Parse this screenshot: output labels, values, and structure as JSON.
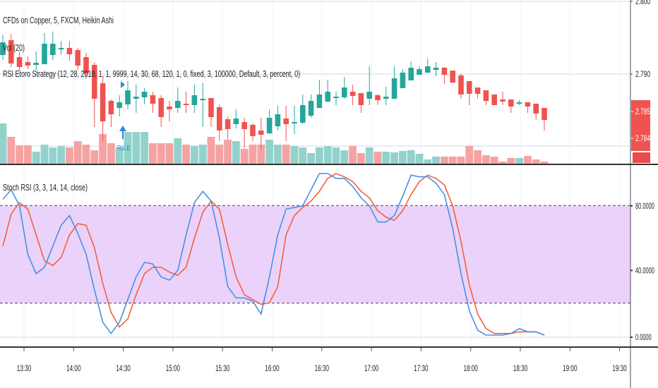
{
  "main_pane": {
    "title": "CFDs on Copper, 5, FXCM, Heikin Ashi",
    "volume_label": "Vol (20)",
    "strategy_label": "RSI Etoro Strategy (12, 28, 2018, 1, 1, 9999, 14, 30, 68, 120, 1, 0, fixed, 3, 100000, Default, 3, percent, 0)",
    "signal_label": "RsLE",
    "price_ticks": [
      "2.800",
      "2.790"
    ],
    "last_price_labels": [
      "2.785",
      "2.784"
    ]
  },
  "stoch_pane": {
    "label": "Stoch RSI (3, 3, 14, 14, close)",
    "ticks": [
      "80.0000",
      "40.0000",
      "0.0000"
    ],
    "overbought": 80,
    "oversold": 20
  },
  "time_axis": {
    "labels": [
      "13:30",
      "14:00",
      "14:30",
      "15:00",
      "15:30",
      "16:00",
      "16:30",
      "17:00",
      "17:30",
      "18:00",
      "18:30",
      "19:00",
      "19:30"
    ]
  },
  "colors": {
    "up": "#26a69a",
    "down": "#ef5350",
    "up_volume": "#93d2cc",
    "down_volume": "#f5a3a2",
    "stoch_k": "#4a90e2",
    "stoch_d": "#f4623a",
    "band": "#ead0fb",
    "signal": "#2e86de"
  },
  "chart_data": {
    "type": "candlestick",
    "price_range": [
      2.7775,
      2.8003
    ],
    "candles_ohlc": [
      [
        2.7927,
        2.7955,
        2.792,
        2.7945
      ],
      [
        2.7948,
        2.7957,
        2.791,
        2.7915
      ],
      [
        2.7924,
        2.7932,
        2.7905,
        2.791
      ],
      [
        2.7917,
        2.7925,
        2.7907,
        2.7912
      ],
      [
        2.7913,
        2.7932,
        2.7905,
        2.7916
      ],
      [
        2.7914,
        2.7958,
        2.7914,
        2.7943
      ],
      [
        2.7927,
        2.796,
        2.792,
        2.7943
      ],
      [
        2.7935,
        2.7947,
        2.7927,
        2.7937
      ],
      [
        2.7937,
        2.7947,
        2.7919,
        2.7928
      ],
      [
        2.7934,
        2.7937,
        2.7905,
        2.7912
      ],
      [
        2.7924,
        2.793,
        2.7893,
        2.7901
      ],
      [
        2.7913,
        2.7917,
        2.7825,
        2.7865
      ],
      [
        2.7887,
        2.7895,
        2.7805,
        2.7833
      ],
      [
        2.7862,
        2.7864,
        2.7825,
        2.7843
      ],
      [
        2.7852,
        2.787,
        2.784,
        2.786
      ],
      [
        2.7857,
        2.789,
        2.785,
        2.7877
      ],
      [
        2.7865,
        2.7885,
        2.7845,
        2.7868
      ],
      [
        2.7867,
        2.788,
        2.7857,
        2.7875
      ],
      [
        2.787,
        2.7875,
        2.7845,
        2.7858
      ],
      [
        2.7866,
        2.787,
        2.7825,
        2.7839
      ],
      [
        2.7854,
        2.7862,
        2.7833,
        2.785
      ],
      [
        2.7852,
        2.7881,
        2.7845,
        2.7862
      ],
      [
        2.7858,
        2.7875,
        2.7845,
        2.7856
      ],
      [
        2.7856,
        2.7885,
        2.7845,
        2.787
      ],
      [
        2.7863,
        2.7887,
        2.7825,
        2.7865
      ],
      [
        2.7866,
        2.7866,
        2.7825,
        2.7839
      ],
      [
        2.7853,
        2.7857,
        2.7805,
        2.782
      ],
      [
        2.7836,
        2.784,
        2.7808,
        2.7822
      ],
      [
        2.7829,
        2.785,
        2.7823,
        2.7837
      ],
      [
        2.7832,
        2.7838,
        2.7795,
        2.7822
      ],
      [
        2.7828,
        2.783,
        2.7805,
        2.7812
      ],
      [
        2.782,
        2.7838,
        2.7793,
        2.7814
      ],
      [
        2.7816,
        2.785,
        2.7815,
        2.7838
      ],
      [
        2.7826,
        2.7855,
        2.782,
        2.7843
      ],
      [
        2.7837,
        2.7855,
        2.7805,
        2.7829
      ],
      [
        2.783,
        2.7855,
        2.7815,
        2.7832
      ],
      [
        2.7831,
        2.7871,
        2.783,
        2.7856
      ],
      [
        2.7841,
        2.7871,
        2.7838,
        2.7862
      ],
      [
        2.7852,
        2.7892,
        2.7852,
        2.7871
      ],
      [
        2.7861,
        2.7892,
        2.786,
        2.7875
      ],
      [
        2.7866,
        2.7875,
        2.7856,
        2.7868
      ],
      [
        2.7867,
        2.7896,
        2.7865,
        2.7881
      ],
      [
        2.7875,
        2.7885,
        2.7856,
        2.7869
      ],
      [
        2.7873,
        2.7873,
        2.7845,
        2.7856
      ],
      [
        2.7865,
        2.7911,
        2.7856,
        2.7875
      ],
      [
        2.787,
        2.7872,
        2.7856,
        2.7863
      ],
      [
        2.7865,
        2.7882,
        2.7856,
        2.7868
      ],
      [
        2.7865,
        2.7911,
        2.7865,
        2.7894
      ],
      [
        2.788,
        2.7907,
        2.788,
        2.7902
      ],
      [
        2.7891,
        2.7918,
        2.7891,
        2.7909
      ],
      [
        2.7899,
        2.7911,
        2.7899,
        2.7907
      ],
      [
        2.7902,
        2.7922,
        2.7902,
        2.7911
      ],
      [
        2.7906,
        2.7917,
        2.7897,
        2.7909
      ],
      [
        2.7909,
        2.791,
        2.7886,
        2.7899
      ],
      [
        2.7905,
        2.7905,
        2.7887,
        2.7888
      ],
      [
        2.7898,
        2.7901,
        2.7865,
        2.7871
      ],
      [
        2.789,
        2.789,
        2.7856,
        2.7872
      ],
      [
        2.7881,
        2.7881,
        2.7865,
        2.7872
      ],
      [
        2.7877,
        2.7877,
        2.7856,
        2.7862
      ],
      [
        2.7871,
        2.7871,
        2.7856,
        2.7856
      ],
      [
        2.7864,
        2.7875,
        2.7856,
        2.7861
      ],
      [
        2.7864,
        2.7864,
        2.7845,
        2.7854
      ],
      [
        2.7858,
        2.7863,
        2.7856,
        2.786
      ],
      [
        2.786,
        2.786,
        2.7845,
        2.7854
      ],
      [
        2.7858,
        2.7858,
        2.7835,
        2.7844
      ],
      [
        2.7852,
        2.7852,
        2.782,
        2.7835
      ]
    ],
    "volume": [
      57,
      38,
      26,
      26,
      17,
      27,
      23,
      25,
      23,
      32,
      27,
      19,
      42,
      29,
      23,
      45,
      45,
      45,
      29,
      29,
      29,
      36,
      27,
      25,
      27,
      38,
      27,
      34,
      32,
      21,
      27,
      27,
      34,
      27,
      27,
      25,
      23,
      15,
      23,
      25,
      23,
      19,
      25,
      15,
      23,
      17,
      17,
      16,
      18,
      19,
      14,
      6,
      10,
      10,
      10,
      10,
      25,
      19,
      12,
      10,
      3,
      8,
      8,
      11,
      6,
      3
    ],
    "signal_candle_index": 14,
    "stoch_rsi": {
      "ylim": [
        0,
        100
      ],
      "k": [
        84,
        90,
        80,
        50,
        38,
        42,
        55,
        68,
        74,
        63,
        50,
        28,
        8,
        1,
        8,
        22,
        36,
        45,
        44,
        36,
        34,
        40,
        62,
        82,
        89,
        83,
        60,
        30,
        23,
        23,
        21,
        13,
        36,
        62,
        78,
        79,
        80,
        90,
        100,
        100,
        97,
        97,
        92,
        85,
        80,
        70,
        70,
        74,
        86,
        99,
        98,
        98,
        94,
        87,
        66,
        38,
        15,
        3,
        0,
        0,
        0,
        1,
        4,
        2,
        2,
        0
      ],
      "d": [
        55,
        75,
        82,
        78,
        62,
        46,
        43,
        48,
        62,
        69,
        68,
        54,
        32,
        14,
        5,
        10,
        25,
        38,
        42,
        42,
        39,
        37,
        42,
        60,
        76,
        83,
        78,
        56,
        36,
        25,
        22,
        19,
        20,
        30,
        62,
        74,
        79,
        83,
        89,
        97,
        100,
        98,
        95,
        89,
        85,
        77,
        73,
        71,
        77,
        87,
        95,
        99,
        97,
        93,
        80,
        58,
        31,
        13,
        4,
        1,
        1,
        1,
        2,
        2,
        2,
        0
      ]
    }
  }
}
